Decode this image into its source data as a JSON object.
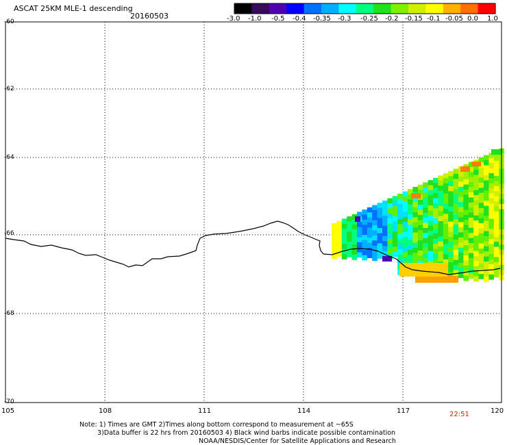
{
  "header": {
    "title": "ASCAT 25KM MLE-1 descending",
    "date": "20160503"
  },
  "colorbar": {
    "labels": [
      "-3.0",
      "-1.0",
      "-0.5",
      "-0.4",
      "-0.35",
      "-0.3",
      "-0.25",
      "-0.2",
      "-0.15",
      "-0.1",
      "-0.05",
      "0.0",
      "1.0"
    ],
    "colors": [
      "#000000",
      "#3a0a5a",
      "#5000b0",
      "#0000ff",
      "#0070ff",
      "#00b0ff",
      "#00ffff",
      "#00ff80",
      "#20e020",
      "#80f000",
      "#d0f000",
      "#ffff00",
      "#ffb000",
      "#ff7000",
      "#ff0000"
    ]
  },
  "axes": {
    "lat_labels": [
      "-60",
      "-62",
      "-64",
      "-66",
      "-68",
      "-70"
    ],
    "lon_labels": [
      "105",
      "108",
      "111",
      "114",
      "117",
      "120"
    ]
  },
  "time_label": "22:51",
  "notes": {
    "line1": "Note: 1) Times are GMT 2)Times along bottom correspond to measurement at ~65S",
    "line2": "3)Data buffer is 22 hrs from 20160503 4) Black wind barbs indicate possible contamination",
    "line3": "NOAA/NESDIS/Center for Satellite Applications and Research"
  }
}
